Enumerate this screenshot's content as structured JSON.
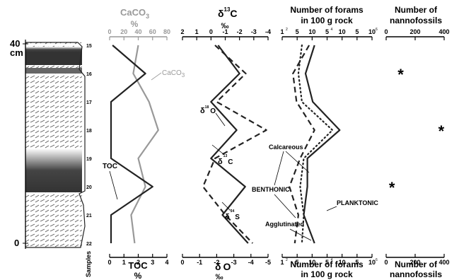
{
  "chart_data": [
    {
      "type": "line",
      "title": "CaCO3 %",
      "x_ticks": [
        "0",
        "20",
        "40",
        "60",
        "80"
      ],
      "xlim": [
        0,
        80
      ],
      "series": [
        {
          "name": "CaCO3",
          "color": "#999999",
          "points": [
            [
              40,
              15
            ],
            [
              33,
              16
            ],
            [
              55,
              17
            ],
            [
              68,
              18
            ],
            [
              40,
              19
            ],
            [
              50,
              20
            ],
            [
              30,
              21
            ],
            [
              35,
              22
            ]
          ]
        }
      ],
      "series_label": "CaCO3"
    },
    {
      "type": "line",
      "title": "TOC %",
      "x_ticks": [
        "0",
        "1",
        "2",
        "3",
        "4"
      ],
      "xlim": [
        0,
        4
      ],
      "series": [
        {
          "name": "TOC",
          "color": "#222222",
          "points": [
            [
              0.2,
              15
            ],
            [
              2.5,
              16
            ],
            [
              0.1,
              17
            ],
            [
              0.1,
              18
            ],
            [
              0.1,
              19
            ],
            [
              3.0,
              20
            ],
            [
              0.1,
              21
            ],
            [
              0.1,
              22
            ]
          ]
        }
      ],
      "series_label": "TOC"
    },
    {
      "type": "line",
      "title": "δ13C ‰",
      "x_ticks": [
        "2",
        "1",
        "0",
        "-1",
        "-2",
        "-3",
        "-4"
      ],
      "xlim": [
        2,
        -4
      ],
      "series": [
        {
          "name": "δ13C",
          "dash": false,
          "points": [
            [
              -0.5,
              15
            ],
            [
              -2.0,
              16
            ],
            [
              0,
              17
            ],
            [
              -1.8,
              18
            ],
            [
              0,
              19
            ],
            [
              -2.4,
              20
            ],
            [
              -0.8,
              21
            ],
            [
              -2.6,
              22
            ]
          ]
        }
      ],
      "series_label": "δ13C"
    },
    {
      "type": "line",
      "title": "δ18O ‰",
      "x_ticks": [
        "0",
        "-1",
        "-2",
        "-3",
        "-4",
        "-5"
      ],
      "xlim": [
        0,
        -5
      ],
      "series": [
        {
          "name": "δ18O",
          "dash": true,
          "points": [
            [
              -1.9,
              15
            ],
            [
              -3.7,
              16
            ],
            [
              -2.0,
              17
            ],
            [
              -4.9,
              18
            ],
            [
              -1.9,
              19
            ],
            [
              -1.2,
              20
            ],
            [
              -2.5,
              21
            ],
            [
              -4.1,
              22
            ]
          ]
        }
      ],
      "labels": {
        "d18O": "δ18O",
        "d34S": "δ34S"
      }
    },
    {
      "type": "line",
      "title": "Number of forams in 100 g rock",
      "x_ticks": [
        "1",
        "5",
        "10",
        "5",
        "10",
        "5",
        "10"
      ],
      "x_ticks_exp": [
        "2",
        "",
        "",
        "4",
        "",
        "",
        "6"
      ],
      "xlim": [
        2,
        7
      ],
      "series": [
        {
          "name": "PLANKTONIC",
          "style": "solid",
          "points": [
            [
              3.8,
              15
            ],
            [
              3.3,
              16
            ],
            [
              3.7,
              17
            ],
            [
              5.2,
              18
            ],
            [
              3.4,
              19
            ],
            [
              3.4,
              20
            ],
            [
              3.2,
              21
            ],
            [
              3.8,
              22
            ]
          ]
        },
        {
          "name": "Calcareous",
          "style": "dotted",
          "points": [
            [
              3.1,
              15
            ],
            [
              2.9,
              16
            ],
            [
              3.1,
              17
            ],
            [
              4.8,
              18
            ],
            [
              3.2,
              19
            ],
            [
              3.0,
              20
            ],
            [
              3.2,
              21
            ],
            [
              3.1,
              22
            ]
          ]
        },
        {
          "name": "Agglutinated",
          "style": "dashed",
          "points": [
            [
              3.5,
              15
            ],
            [
              2.6,
              16
            ],
            [
              2.8,
              17
            ],
            [
              3.8,
              18
            ],
            [
              3.0,
              19
            ],
            [
              2.4,
              20
            ],
            [
              2.9,
              21
            ],
            [
              2.7,
              22
            ]
          ]
        }
      ],
      "annotations": [
        "Calcareous",
        "BENTHONIC",
        "Agglutinated",
        "PLANKTONIC"
      ]
    },
    {
      "type": "scatter",
      "title": "Number of nannofossils",
      "x_ticks": [
        "0",
        "200",
        "400"
      ],
      "xlim": [
        0,
        400
      ],
      "series": [
        {
          "name": "nannofossils",
          "points": [
            [
              100,
              16
            ],
            [
              380,
              18
            ],
            [
              40,
              20
            ]
          ]
        }
      ],
      "marker": "*"
    }
  ],
  "column": {
    "depth_top": "40",
    "depth_unit": "cm",
    "depth_bottom": "0",
    "samples_label": "Samples",
    "sample_numbers": [
      "15",
      "16",
      "17",
      "18",
      "19",
      "20",
      "21",
      "22"
    ]
  },
  "labels": {
    "caco3_title": "CaCO",
    "caco3_sub": "3",
    "caco3_unit": "%",
    "c13_delta": "δ",
    "c13_sup": "13",
    "c13_el": "C",
    "permil_top": "‰",
    "forams_top_1": "Number of forams",
    "forams_top_2": "in 100 g rock",
    "nanno_top_1": "Number of",
    "nanno_top_2": "nannofossils",
    "toc_title": "TOC",
    "toc_unit": "%",
    "o18_delta": "δ",
    "o18_el": "O",
    "o18_sup": "18",
    "permil_bottom": "‰",
    "forams_bottom_1": "Number of forams",
    "forams_bottom_2": "in 100 g rock",
    "nanno_bottom_1": "Number of",
    "nanno_bottom_2": "nannofossils",
    "caco3_curve": "CaCO",
    "caco3_curve_sub": "3",
    "toc_curve": "TOC",
    "o18_curve_sup": "18",
    "o18_curve_el": "O",
    "c13_curve_sup": "13",
    "c13_curve_el": "C",
    "s34_curve_sup": "34",
    "s34_curve_el": "S",
    "calcareous": "Calcareous",
    "benthonic": "BENTHONIC",
    "agglutinated": "Agglutinated",
    "planktonic": "PLANKTONIC"
  }
}
